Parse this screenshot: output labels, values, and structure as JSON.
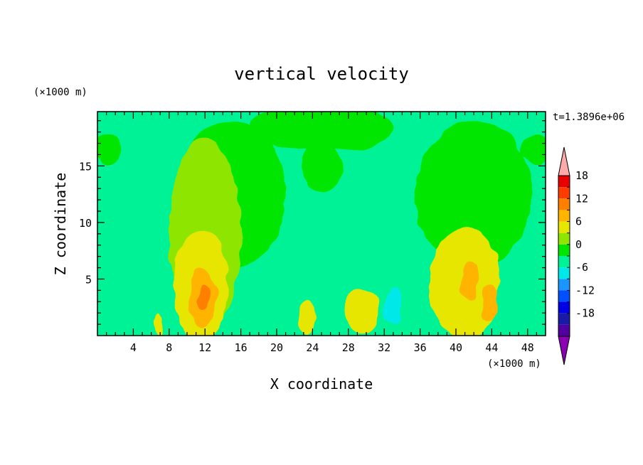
{
  "chart_data": {
    "type": "heatmap",
    "title": "vertical velocity",
    "xlabel": "X coordinate",
    "ylabel": "Z coordinate",
    "x_unit": "(×1000 m)",
    "y_unit": "(×1000 m)",
    "time_label": "t=1.3896e+06",
    "xlim": [
      0,
      50
    ],
    "ylim": [
      0,
      19.8
    ],
    "x_ticks": [
      4,
      8,
      12,
      16,
      20,
      24,
      28,
      32,
      36,
      40,
      44,
      48
    ],
    "y_ticks": [
      5,
      10,
      15
    ],
    "colorbar": {
      "levels": [
        -21,
        -18,
        -15,
        -12,
        -9,
        -6,
        -3,
        0,
        3,
        6,
        9,
        12,
        15,
        18,
        21
      ],
      "tick_labels": [
        -18,
        -12,
        -6,
        0,
        6,
        12,
        18
      ],
      "colors": [
        "#8b00b0",
        "#5000a0",
        "#1a1aa8",
        "#0000e6",
        "#0050ff",
        "#1c96ff",
        "#00e8e8",
        "#00f296",
        "#00e600",
        "#8ee600",
        "#e6e600",
        "#ffb400",
        "#ff8000",
        "#ff3c00",
        "#e60000",
        "#ffaaaa"
      ]
    },
    "features": [
      {
        "x": 12,
        "z": 9.0,
        "rx": 4.0,
        "rz": 8.5,
        "value": 3
      },
      {
        "x": 11.5,
        "z": 4.5,
        "rx": 3.0,
        "rz": 5.0,
        "value": 6
      },
      {
        "x": 11.7,
        "z": 3.3,
        "rx": 1.5,
        "rz": 2.6,
        "value": 9
      },
      {
        "x": 11.8,
        "z": 3.4,
        "rx": 0.6,
        "rz": 1.2,
        "value": 12
      },
      {
        "x": 41,
        "z": 4.5,
        "rx": 4.0,
        "rz": 5.0,
        "value": 6
      },
      {
        "x": 41.5,
        "z": 4.8,
        "rx": 1.0,
        "rz": 1.6,
        "value": 9
      },
      {
        "x": 43.8,
        "z": 3.0,
        "rx": 1.0,
        "rz": 1.6,
        "value": 9
      },
      {
        "x": 29.5,
        "z": 2.2,
        "rx": 2.0,
        "rz": 2.0,
        "value": 6
      },
      {
        "x": 23.5,
        "z": 1.5,
        "rx": 1.0,
        "rz": 1.5,
        "value": 6
      },
      {
        "x": 6.8,
        "z": 1.0,
        "rx": 0.5,
        "rz": 0.9,
        "value": 6
      },
      {
        "x": 4.2,
        "z": 6.0,
        "rx": 2.5,
        "rz": 4.5,
        "value": -3
      },
      {
        "x": 47,
        "z": 3.0,
        "rx": 2.5,
        "rz": 3.0,
        "value": -3
      },
      {
        "x": 33,
        "z": 2.5,
        "rx": 1.0,
        "rz": 1.6,
        "value": -6
      }
    ]
  }
}
